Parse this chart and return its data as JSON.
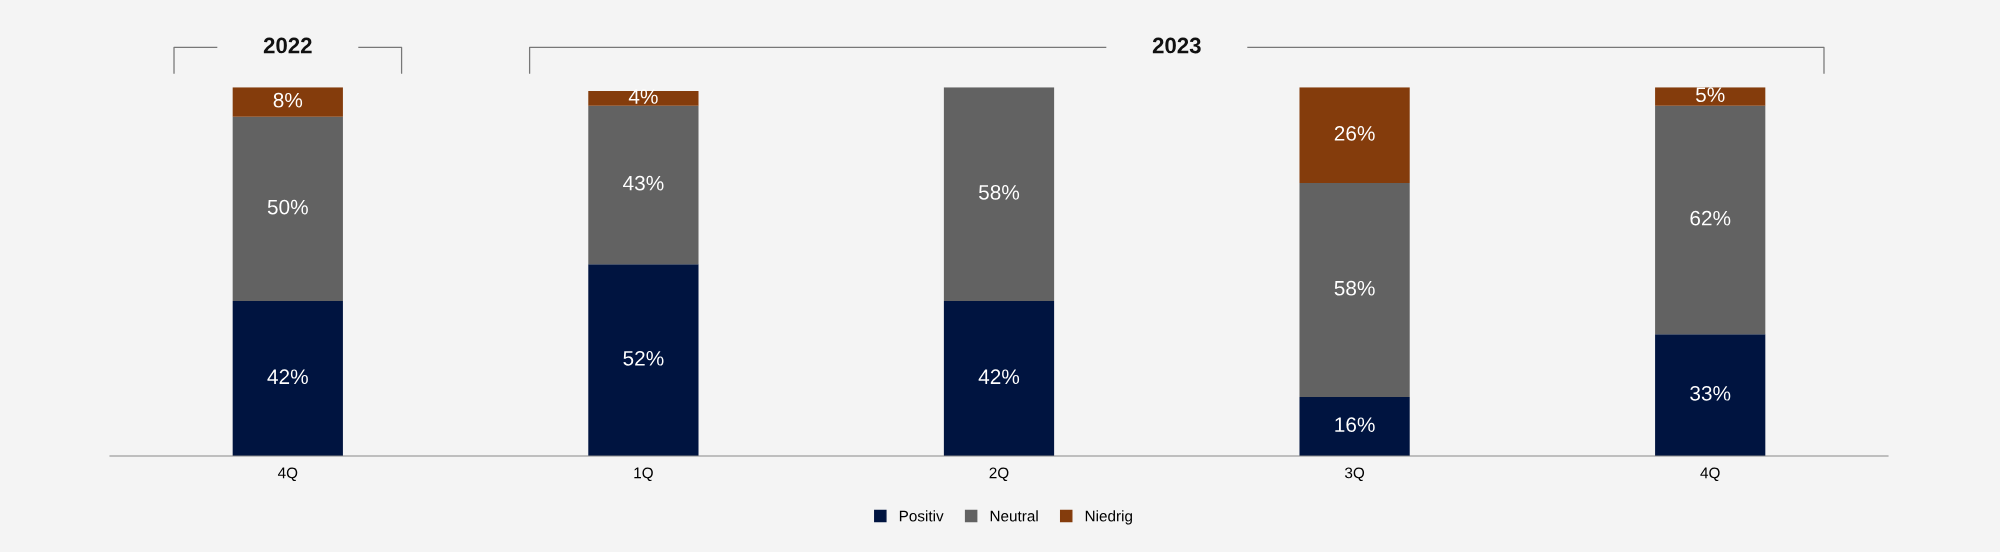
{
  "chart_data": {
    "type": "bar",
    "stacked": true,
    "legend": "bottom",
    "grid": false,
    "categories": [
      "4Q",
      "1Q",
      "2Q",
      "3Q",
      "4Q"
    ],
    "series": [
      {
        "name": "Positiv",
        "color": "#001440",
        "values": [
          42,
          52,
          42,
          16,
          33
        ],
        "value_labels": [
          "42%",
          "52%",
          "42%",
          "16%",
          "33%"
        ]
      },
      {
        "name": "Neutral",
        "color": "#626262",
        "values": [
          50,
          43,
          58,
          58,
          62
        ],
        "value_labels": [
          "50%",
          "43%",
          "58%",
          "58%",
          "62%"
        ]
      },
      {
        "name": "Niedrig",
        "color": "#843c0c",
        "values": [
          8,
          4,
          null,
          26,
          5
        ],
        "value_labels": [
          "8%",
          "4%",
          null,
          "26%",
          "5%"
        ]
      }
    ],
    "annotations": [
      "2022",
      "2023"
    ]
  }
}
